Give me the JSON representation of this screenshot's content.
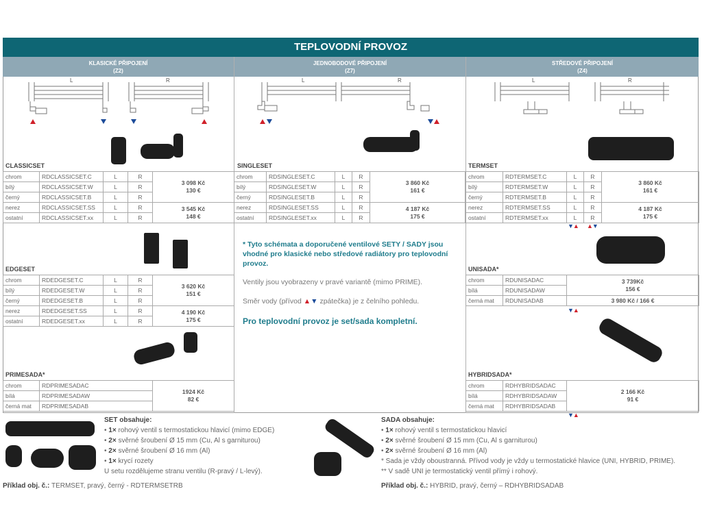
{
  "title": "TEPLOVODNÍ PROVOZ",
  "columns": [
    {
      "line1": "KLASICKÉ PŘIPOJENÍ",
      "line2": "(Z2)"
    },
    {
      "line1": "JEDNOBODOVÉ PŘIPOJENÍ",
      "line2": "(Z7)"
    },
    {
      "line1": "STŘEDOVÉ PŘIPOJENÍ",
      "line2": "(Z4)"
    }
  ],
  "diagram_labels": {
    "left": "L",
    "right": "R"
  },
  "colors": {
    "header": "#0e6674",
    "subheader": "#8fa8b5",
    "supply": "#d0202a",
    "return": "#1d4c9a",
    "accent_text": "#1f7c8c"
  },
  "tables": {
    "classicset": {
      "name": "CLASSICSET",
      "rows": [
        [
          "chrom",
          "RDCLASSICSET.C",
          "L",
          "R"
        ],
        [
          "bílý",
          "RDCLASSICSET.W",
          "L",
          "R"
        ],
        [
          "černý",
          "RDCLASSICSET.B",
          "L",
          "R"
        ],
        [
          "nerez",
          "RDCLASSICSET.SS",
          "L",
          "R"
        ],
        [
          "ostatní",
          "RDCLASSICSET.xx",
          "L",
          "R"
        ]
      ],
      "prices": [
        {
          "span": 3,
          "czk": "3 098 Kč",
          "eur": "130 €"
        },
        {
          "span": 2,
          "czk": "3 545 Kč",
          "eur": "148 €"
        }
      ]
    },
    "edgeset": {
      "name": "EDGESET",
      "rows": [
        [
          "chrom",
          "RDEDGESET.C",
          "L",
          "R"
        ],
        [
          "bílý",
          "RDEDGESET.W",
          "L",
          "R"
        ],
        [
          "černý",
          "RDEDGESET.B",
          "L",
          "R"
        ],
        [
          "nerez",
          "RDEDGESET.SS",
          "L",
          "R"
        ],
        [
          "ostatní",
          "RDEDGESET.xx",
          "L",
          "R"
        ]
      ],
      "prices": [
        {
          "span": 3,
          "czk": "3 620 Kč",
          "eur": "151 €"
        },
        {
          "span": 2,
          "czk": "4 190 Kč",
          "eur": "175 €"
        }
      ]
    },
    "primesada": {
      "name": "PRIMESADA*",
      "rows": [
        [
          "chrom",
          "RDPRIMESADAC"
        ],
        [
          "bílá",
          "RDPRIMESADAW"
        ],
        [
          "černá mat",
          "RDPRIMESADAB"
        ]
      ],
      "prices": [
        {
          "span": 3,
          "czk": "1924 Kč",
          "eur": "82 €"
        }
      ]
    },
    "singleset": {
      "name": "SINGLESET",
      "rows": [
        [
          "chrom",
          "RDSINGLESET.C",
          "L",
          "R"
        ],
        [
          "bílý",
          "RDSINGLESET.W",
          "L",
          "R"
        ],
        [
          "černý",
          "RDSINGLESET.B",
          "L",
          "R"
        ],
        [
          "nerez",
          "RDSINGLESET.SS",
          "L",
          "R"
        ],
        [
          "ostatní",
          "RDSINGLESET.xx",
          "L",
          "R"
        ]
      ],
      "prices": [
        {
          "span": 3,
          "czk": "3 860 Kč",
          "eur": "161 €"
        },
        {
          "span": 2,
          "czk": "4 187 Kč",
          "eur": "175 €"
        }
      ]
    },
    "termset": {
      "name": "TERMSET",
      "rows": [
        [
          "chrom",
          "RDTERMSET.C",
          "L",
          "R"
        ],
        [
          "bílý",
          "RDTERMSET.W",
          "L",
          "R"
        ],
        [
          "černý",
          "RDTERMSET.B",
          "L",
          "R"
        ],
        [
          "nerez",
          "RDTERMSET.SS",
          "L",
          "R"
        ],
        [
          "ostatní",
          "RDTERMSET.xx",
          "L",
          "R"
        ]
      ],
      "prices": [
        {
          "span": 3,
          "czk": "3 860 Kč",
          "eur": "161 €"
        },
        {
          "span": 2,
          "czk": "4 187 Kč",
          "eur": "175 €"
        }
      ]
    },
    "unisada": {
      "name": "UNISADA*",
      "rows": [
        [
          "chrom",
          "RDUNISADAC"
        ],
        [
          "bílá",
          "RDUNISADAW"
        ],
        [
          "černá mat",
          "RDUNISADAB"
        ]
      ],
      "prices": [
        {
          "span": 2,
          "czk": "3 739Kč",
          "eur": "156 €"
        },
        {
          "span": 1,
          "czk": "3 980 Kč / 166 €",
          "eur": ""
        }
      ]
    },
    "hybridsada": {
      "name": "HYBRIDSADA*",
      "rows": [
        [
          "chrom",
          "RDHYBRIDSADAC"
        ],
        [
          "bílá",
          "RDHYBRIDSADAW"
        ],
        [
          "černá mat",
          "RDHYBRIDSADAB"
        ]
      ],
      "prices": [
        {
          "span": 3,
          "czk": "2 166 Kč",
          "eur": "91 €"
        }
      ]
    }
  },
  "notes": {
    "star": "* Tyto schémata a doporučené ventilové SETY / SADY jsou vhodné pro klasické nebo středové radiátory pro teplovodní provoz.",
    "shown": "Ventily jsou vyobrazeny v pravé variantě (mimo PRIME).",
    "flow_before": "Směr vody (přívod",
    "flow_after": "zpátečka) je z čelního pohledu.",
    "complete": "Pro teplovodní provoz je set/sada kompletní."
  },
  "set_contents": {
    "title": "SET obsahuje:",
    "items": [
      [
        "1×",
        "rohový ventil s termostatickou hlavicí (mimo EDGE)"
      ],
      [
        "2×",
        "svěrné šroubení Ø 15 mm (Cu, Al s garniturou)"
      ],
      [
        "2×",
        "svěrné šroubení Ø 16 mm (Al)"
      ],
      [
        "1×",
        "krycí rozety"
      ]
    ],
    "extra": "U setu rozdělujeme stranu ventilu (R-pravý / L-levý).",
    "example_label": "Příklad obj. č.:",
    "example": "TERMSET, pravý, černý - RDTERMSETRB"
  },
  "sada_contents": {
    "title": "SADA obsahuje:",
    "items": [
      [
        "1×",
        "rohový ventil s termostatickou hlavicí"
      ],
      [
        "2×",
        "svěrné šroubení Ø 15 mm (Cu, Al s garniturou)"
      ],
      [
        "2×",
        "svěrné šroubení Ø 16 mm (Al)"
      ]
    ],
    "extra1": "* Sada je vždy oboustranná. Přívod vody je vždy u termostatické hlavice (UNI, HYBRID, PRIME).",
    "extra2": "** V sadě UNI je termostatický ventil přímý i rohový.",
    "example_label": "Příklad obj. č.:",
    "example": "HYBRID, pravý, černý – RDHYBRIDSADAB"
  }
}
